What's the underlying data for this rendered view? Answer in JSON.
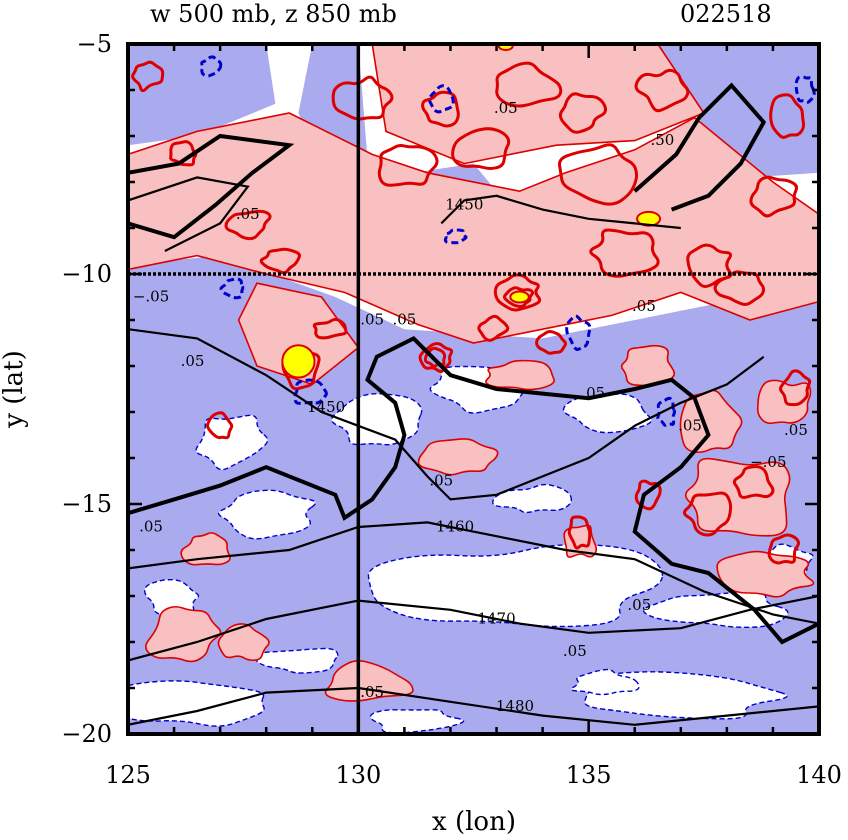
{
  "chart_data": {
    "type": "contour",
    "title_left": "w 500 mb, z 850 mb",
    "title_right": "022518",
    "xlabel": "x (lon)",
    "ylabel": "y (lat)",
    "xlim": [
      125,
      140
    ],
    "ylim": [
      -20,
      -5
    ],
    "x_ticks": [
      125,
      130,
      135,
      140
    ],
    "y_ticks": [
      -5,
      -10,
      -15,
      -20
    ],
    "x_tick_labels": [
      "125",
      "130",
      "135",
      "140"
    ],
    "y_tick_labels": [
      "−5",
      "−10",
      "−15",
      "−20"
    ],
    "reference_lines": {
      "lon": 130,
      "lat": -10
    },
    "fill_colors": {
      "positive": "#f8c0c0",
      "negative": "#aaaaee",
      "strong_positive": "#ffff00"
    },
    "line_colors": {
      "positive_contour": "#dd0000",
      "negative_contour": "#0000cc",
      "height_contour": "#000000"
    },
    "w_contour_labels": [
      {
        "text": ".50",
        "x": 136.6,
        "y": -7.2
      },
      {
        "text": ".05",
        "x": 127.6,
        "y": -8.8
      },
      {
        "text": ".05",
        "x": 133.2,
        "y": -6.5
      },
      {
        "text": ".05",
        "x": 130.3,
        "y": -11.1
      },
      {
        "text": ".05",
        "x": 131.0,
        "y": -11.1
      },
      {
        "text": ".05",
        "x": 136.2,
        "y": -10.8
      },
      {
        "text": ".05",
        "x": 135.1,
        "y": -12.7
      },
      {
        "text": ".05",
        "x": 126.4,
        "y": -12.0
      },
      {
        "text": ".05",
        "x": 137.2,
        "y": -13.4
      },
      {
        "text": ".05",
        "x": 131.8,
        "y": -14.6
      },
      {
        "text": ".05",
        "x": 125.5,
        "y": -15.6
      },
      {
        "text": ".05",
        "x": 136.1,
        "y": -17.3
      },
      {
        "text": ".05",
        "x": 134.7,
        "y": -18.3
      },
      {
        "text": ".05",
        "x": 130.3,
        "y": -19.2
      },
      {
        "text": ".05",
        "x": 139.5,
        "y": -13.5
      },
      {
        "text": "−.05",
        "x": 125.5,
        "y": -10.6
      },
      {
        "text": "−.05",
        "x": 138.9,
        "y": -14.2
      }
    ],
    "z_contour_labels": [
      {
        "text": "1450",
        "x": 129.3,
        "y": -13.0
      },
      {
        "text": "1450",
        "x": 132.3,
        "y": -8.6
      },
      {
        "text": "1460",
        "x": 132.1,
        "y": -15.6
      },
      {
        "text": "1470",
        "x": 133.0,
        "y": -17.6
      },
      {
        "text": "1480",
        "x": 133.4,
        "y": -19.5
      }
    ],
    "z_contours": [
      {
        "level": 1450,
        "points": [
          [
            125,
            -11.2
          ],
          [
            126.5,
            -11.4
          ],
          [
            128,
            -12.2
          ],
          [
            129.2,
            -13.0
          ],
          [
            130.0,
            -13.3
          ],
          [
            130.8,
            -13.6
          ],
          [
            131.5,
            -14.4
          ],
          [
            132.0,
            -14.9
          ],
          [
            133.0,
            -14.8
          ],
          [
            134.0,
            -14.4
          ],
          [
            135.0,
            -14.0
          ],
          [
            136.0,
            -13.3
          ],
          [
            137.0,
            -12.8
          ],
          [
            138.0,
            -12.4
          ],
          [
            138.8,
            -11.8
          ]
        ]
      },
      {
        "level": 1460,
        "points": [
          [
            125,
            -16.4
          ],
          [
            126.5,
            -16.2
          ],
          [
            128.5,
            -16.0
          ],
          [
            130.0,
            -15.5
          ],
          [
            131.5,
            -15.4
          ],
          [
            133.0,
            -15.7
          ],
          [
            134.5,
            -16.0
          ],
          [
            136.0,
            -16.2
          ],
          [
            137.5,
            -16.9
          ],
          [
            139.0,
            -17.4
          ],
          [
            140.0,
            -17.6
          ]
        ]
      },
      {
        "level": 1470,
        "points": [
          [
            125,
            -18.4
          ],
          [
            126.5,
            -18.0
          ],
          [
            128.0,
            -17.5
          ],
          [
            130.0,
            -17.1
          ],
          [
            132.0,
            -17.3
          ],
          [
            133.5,
            -17.6
          ],
          [
            135.0,
            -17.8
          ],
          [
            137.0,
            -17.7
          ],
          [
            138.5,
            -17.3
          ],
          [
            140.0,
            -17.0
          ]
        ]
      },
      {
        "level": 1480,
        "points": [
          [
            125,
            -19.8
          ],
          [
            126.5,
            -19.5
          ],
          [
            128.0,
            -19.1
          ],
          [
            130.0,
            -19.0
          ],
          [
            132.0,
            -19.3
          ],
          [
            134.0,
            -19.6
          ],
          [
            136.0,
            -19.8
          ],
          [
            138.0,
            -19.6
          ],
          [
            140.0,
            -19.4
          ]
        ]
      },
      {
        "level": 1450,
        "points": [
          [
            131.8,
            -8.9
          ],
          [
            132.3,
            -8.4
          ],
          [
            133.0,
            -8.3
          ],
          [
            134.0,
            -8.6
          ],
          [
            135.0,
            -8.8
          ],
          [
            136.0,
            -8.9
          ],
          [
            137.0,
            -9.0
          ]
        ]
      },
      {
        "level": 1450,
        "points": [
          [
            125,
            -8.4
          ],
          [
            126.5,
            -7.9
          ],
          [
            127.6,
            -8.1
          ],
          [
            127.0,
            -8.9
          ],
          [
            125.8,
            -9.5
          ]
        ]
      }
    ],
    "boundary_line": [
      [
        125,
        -15.2
      ],
      [
        126.0,
        -14.9
      ],
      [
        127.0,
        -14.6
      ],
      [
        128.0,
        -14.2
      ],
      [
        129.5,
        -14.8
      ],
      [
        129.7,
        -15.3
      ],
      [
        130.3,
        -14.9
      ],
      [
        130.8,
        -14.2
      ],
      [
        131.0,
        -13.5
      ],
      [
        130.8,
        -12.8
      ],
      [
        130.2,
        -12.3
      ],
      [
        130.4,
        -11.8
      ],
      [
        131.2,
        -11.4
      ],
      [
        131.6,
        -11.8
      ],
      [
        132.0,
        -12.2
      ],
      [
        133.0,
        -12.5
      ],
      [
        134.0,
        -12.6
      ],
      [
        135.0,
        -12.7
      ],
      [
        136.0,
        -12.5
      ],
      [
        136.8,
        -12.3
      ],
      [
        137.3,
        -12.7
      ],
      [
        137.6,
        -13.5
      ],
      [
        137.0,
        -14.2
      ],
      [
        136.2,
        -14.8
      ],
      [
        136.0,
        -15.6
      ],
      [
        136.8,
        -16.3
      ],
      [
        137.6,
        -16.5
      ],
      [
        138.6,
        -17.3
      ],
      [
        139.2,
        -18.0
      ],
      [
        140.0,
        -17.6
      ]
    ],
    "boundary_line_top": [
      [
        125,
        -8.9
      ],
      [
        126.0,
        -9.2
      ],
      [
        126.9,
        -8.5
      ],
      [
        127.7,
        -7.8
      ],
      [
        128.5,
        -7.2
      ],
      [
        127.0,
        -7.0
      ],
      [
        126.1,
        -7.6
      ],
      [
        125,
        -7.8
      ]
    ],
    "boundary_line_ne": [
      [
        136.0,
        -8.2
      ],
      [
        136.9,
        -7.4
      ],
      [
        137.4,
        -6.6
      ],
      [
        138.1,
        -5.9
      ],
      [
        138.8,
        -6.7
      ],
      [
        138.3,
        -7.6
      ],
      [
        137.6,
        -8.3
      ],
      [
        136.8,
        -8.6
      ]
    ]
  }
}
